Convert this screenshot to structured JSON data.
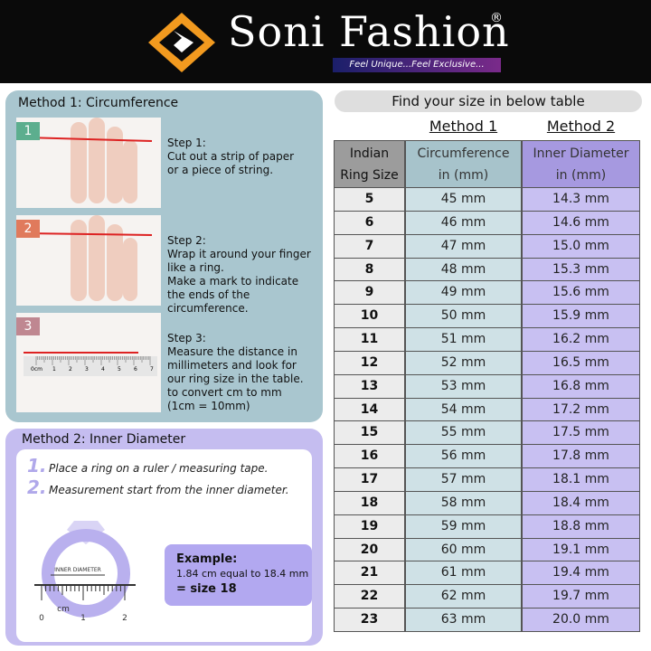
{
  "header": {
    "brand": "Soni Fashion",
    "registered": "®",
    "tagline": "Feel Unique...Feel Exclusive..."
  },
  "method1": {
    "title": "Method 1:  Circumference",
    "steps": [
      {
        "badge": "1",
        "label": "Step 1:",
        "lines": [
          "Cut out a strip of paper",
          "or a piece of string."
        ]
      },
      {
        "badge": "2",
        "label": "Step 2:",
        "lines": [
          "Wrap it around your finger",
          "like a ring.",
          "Make a mark to indicate",
          "the ends of the",
          "circumference."
        ]
      },
      {
        "badge": "3",
        "label": "Step 3:",
        "lines": [
          "Measure the distance in",
          "millimeters  and look for",
          "our ring size in the table.",
          "to convert cm to mm",
          "(1cm = 10mm)"
        ]
      }
    ],
    "ruler": [
      "0cm",
      "1",
      "2",
      "3",
      "4",
      "5",
      "6",
      "7"
    ]
  },
  "method2": {
    "title": "Method 2:  Inner Diameter",
    "items": [
      {
        "num": "1.",
        "text": "Place a ring on a ruler / measuring tape."
      },
      {
        "num": "2.",
        "text": "Measurement start from the inner diameter."
      }
    ],
    "illustration": {
      "label": "INNER DIAMETER",
      "unit": "cm",
      "ticks": [
        "0",
        "1",
        "2"
      ]
    },
    "example": {
      "title": "Example:",
      "lines": [
        "1.84 cm equal to 18.4 mm",
        "= size 18"
      ]
    }
  },
  "table": {
    "heading": "Find your size in below table",
    "methods": [
      "Method 1",
      "Method 2"
    ],
    "columns": [
      [
        "Indian",
        "Ring Size"
      ],
      [
        "Circumference",
        "in (mm)"
      ],
      [
        "Inner Diameter",
        "in (mm)"
      ]
    ],
    "rows": [
      [
        "5",
        "45 mm",
        "14.3 mm"
      ],
      [
        "6",
        "46 mm",
        "14.6 mm"
      ],
      [
        "7",
        "47 mm",
        "15.0 mm"
      ],
      [
        "8",
        "48 mm",
        "15.3 mm"
      ],
      [
        "9",
        "49 mm",
        "15.6 mm"
      ],
      [
        "10",
        "50 mm",
        "15.9 mm"
      ],
      [
        "11",
        "51 mm",
        "16.2 mm"
      ],
      [
        "12",
        "52 mm",
        "16.5 mm"
      ],
      [
        "13",
        "53 mm",
        "16.8 mm"
      ],
      [
        "14",
        "54 mm",
        "17.2 mm"
      ],
      [
        "15",
        "55 mm",
        "17.5 mm"
      ],
      [
        "16",
        "56 mm",
        "17.8 mm"
      ],
      [
        "17",
        "57 mm",
        "18.1 mm"
      ],
      [
        "18",
        "58 mm",
        "18.4 mm"
      ],
      [
        "19",
        "59 mm",
        "18.8 mm"
      ],
      [
        "20",
        "60 mm",
        "19.1 mm"
      ],
      [
        "21",
        "61 mm",
        "19.4 mm"
      ],
      [
        "22",
        "62 mm",
        "19.7 mm"
      ],
      [
        "23",
        "63 mm",
        "20.0 mm"
      ]
    ]
  }
}
